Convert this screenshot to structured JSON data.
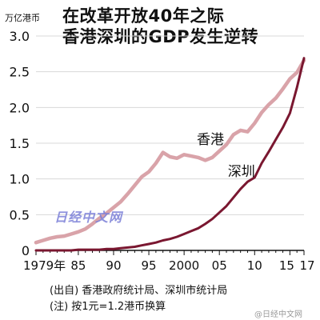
{
  "title_line1": "在改革开放40年之际",
  "title_line2": "香港深圳的GDP发生逆转",
  "unit_label": "万亿港币",
  "source_note": "(出自) 香港政府统计局、深圳市统计局",
  "rate_note": "(注) 按1元=1.2港币换算",
  "watermark": "日经中文网",
  "watermark2": "@日经中文网",
  "colors": {
    "hongkong": "#d9a3a9",
    "shenzhen": "#7a1730",
    "axis": "#111111"
  },
  "chart_data": {
    "type": "line",
    "title": "在改革开放40年之际 香港深圳的GDP发生逆转",
    "ylabel": "万亿港币",
    "xlim": [
      1979,
      2017
    ],
    "ylim": [
      0,
      3.0
    ],
    "yticks": [
      0,
      0.5,
      1.0,
      1.5,
      2.0,
      2.5,
      3.0
    ],
    "ytick_labels": [
      "0",
      "0.5",
      "1.0",
      "1.5",
      "2.0",
      "2.5",
      "3.0"
    ],
    "xticks": [
      1979,
      1985,
      1990,
      1995,
      2000,
      2005,
      2010,
      2015,
      2017
    ],
    "xtick_labels": [
      "1979年",
      "85",
      "90",
      "95",
      "2000",
      "05",
      "10",
      "15",
      "17"
    ],
    "grid": true,
    "series": [
      {
        "name": "香港",
        "x": [
          1979,
          1980,
          1981,
          1982,
          1983,
          1984,
          1985,
          1986,
          1987,
          1988,
          1989,
          1990,
          1991,
          1992,
          1993,
          1994,
          1995,
          1996,
          1997,
          1998,
          1999,
          2000,
          2001,
          2002,
          2003,
          2004,
          2005,
          2006,
          2007,
          2008,
          2009,
          2010,
          2011,
          2012,
          2013,
          2014,
          2015,
          2016,
          2017
        ],
        "values": [
          0.11,
          0.14,
          0.17,
          0.19,
          0.2,
          0.23,
          0.26,
          0.3,
          0.37,
          0.45,
          0.52,
          0.6,
          0.68,
          0.79,
          0.91,
          1.03,
          1.1,
          1.22,
          1.37,
          1.31,
          1.29,
          1.34,
          1.32,
          1.3,
          1.26,
          1.3,
          1.39,
          1.48,
          1.62,
          1.68,
          1.66,
          1.78,
          1.93,
          2.04,
          2.13,
          2.26,
          2.4,
          2.49,
          2.66
        ]
      },
      {
        "name": "深圳",
        "x": [
          1979,
          1980,
          1981,
          1982,
          1983,
          1984,
          1985,
          1986,
          1987,
          1988,
          1989,
          1990,
          1991,
          1992,
          1993,
          1994,
          1995,
          1996,
          1997,
          1998,
          1999,
          2000,
          2001,
          2002,
          2003,
          2004,
          2005,
          2006,
          2007,
          2008,
          2009,
          2010,
          2011,
          2012,
          2013,
          2014,
          2015,
          2016,
          2017
        ],
        "values": [
          0.0,
          0.0,
          0.0,
          0.0,
          0.0,
          0.0,
          0.01,
          0.01,
          0.01,
          0.01,
          0.02,
          0.02,
          0.03,
          0.04,
          0.05,
          0.07,
          0.09,
          0.11,
          0.14,
          0.16,
          0.19,
          0.23,
          0.27,
          0.31,
          0.37,
          0.44,
          0.53,
          0.62,
          0.74,
          0.86,
          0.96,
          1.02,
          1.22,
          1.38,
          1.55,
          1.72,
          1.92,
          2.28,
          2.69
        ]
      }
    ]
  }
}
